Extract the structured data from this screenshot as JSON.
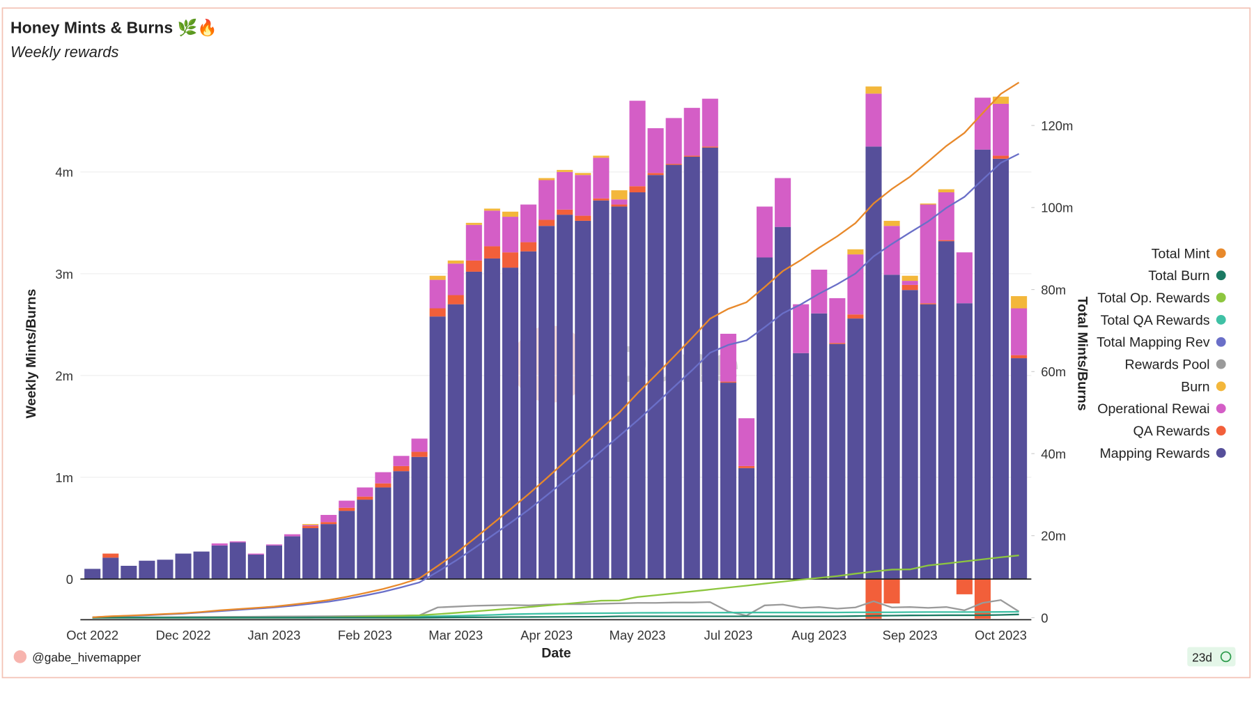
{
  "chart_data": {
    "type": "combo",
    "title": "Honey Mints & Burns 🌿🔥",
    "subtitle": "Weekly rewards",
    "x_label": "Date",
    "y_label": "Weekly Mints/Burns",
    "y2_label": "Total Mints/Burns",
    "watermark": "Dune",
    "author": "@gabe_hivemapper",
    "age": "23d",
    "categories": [
      "Oct 2022",
      null,
      null,
      null,
      null,
      "Dec 2022",
      null,
      null,
      null,
      null,
      "Jan 2023",
      null,
      null,
      null,
      null,
      "Feb 2023",
      null,
      null,
      null,
      null,
      "Mar 2023",
      null,
      null,
      null,
      null,
      "Apr 2023",
      null,
      null,
      null,
      null,
      "May 2023",
      null,
      null,
      null,
      null,
      "Jul 2023",
      null,
      null,
      null,
      null,
      "Aug 2023",
      null,
      null,
      null,
      null,
      "Sep 2023",
      null,
      null,
      null,
      null,
      "Oct 2023",
      null
    ],
    "ylim": [
      -0.4,
      4.9
    ],
    "yticks": [
      0,
      {
        "value": 1,
        "label": "1m"
      },
      {
        "value": 2,
        "label": "2m"
      },
      {
        "value": 3,
        "label": "3m"
      },
      {
        "value": 4,
        "label": "4m"
      }
    ],
    "y2lim": [
      -0.5,
      131
    ],
    "y2ticks": [
      0,
      {
        "value": 20,
        "label": "20m"
      },
      {
        "value": 40,
        "label": "40m"
      },
      {
        "value": 60,
        "label": "60m"
      },
      {
        "value": 80,
        "label": "80m"
      },
      {
        "value": 100,
        "label": "100m"
      },
      {
        "value": 120,
        "label": "120m"
      }
    ],
    "grid": true,
    "legend": "right",
    "series": [
      {
        "name": "Total Mint",
        "type": "line",
        "axis": "y2",
        "color": "#e8892b",
        "values": [
          0.1,
          0.35,
          0.5,
          0.7,
          0.9,
          1.1,
          1.4,
          1.8,
          2.1,
          2.4,
          2.7,
          3.2,
          3.7,
          4.3,
          5.1,
          6.0,
          7.0,
          8.2,
          9.6,
          12.6,
          15.7,
          19.2,
          22.8,
          26.4,
          30.1,
          34.0,
          38.0,
          42.0,
          46.1,
          50.0,
          54.7,
          59.1,
          63.6,
          68.2,
          72.9,
          75.3,
          76.9,
          80.6,
          84.5,
          87.2,
          90.2,
          93.0,
          96.2,
          101.0,
          104.5,
          107.5,
          111.2,
          115.0,
          118.2,
          123.0,
          127.7,
          130.5
        ]
      },
      {
        "name": "Total Burn",
        "type": "line",
        "axis": "y2",
        "color": "#1b7a63",
        "values": [
          0,
          0,
          0,
          0,
          0,
          0,
          0,
          0,
          0,
          0,
          0,
          0,
          0.01,
          0.01,
          0.01,
          0.01,
          0.01,
          0.01,
          0.01,
          0.05,
          0.08,
          0.1,
          0.12,
          0.17,
          0.17,
          0.19,
          0.21,
          0.23,
          0.25,
          0.34,
          0.34,
          0.34,
          0.34,
          0.34,
          0.34,
          0.34,
          0.34,
          0.34,
          0.34,
          0.34,
          0.34,
          0.34,
          0.39,
          0.46,
          0.51,
          0.56,
          0.57,
          0.6,
          0.6,
          0.6,
          0.67,
          0.79
        ]
      },
      {
        "name": "Total Op. Rewards",
        "type": "line",
        "axis": "y2",
        "color": "#8dc63f",
        "values": [
          0,
          0,
          0,
          0,
          0,
          0,
          0,
          0,
          0,
          0,
          0,
          0,
          0.01,
          0.08,
          0.15,
          0.24,
          0.35,
          0.45,
          0.58,
          0.86,
          1.17,
          1.52,
          1.87,
          2.22,
          2.59,
          2.98,
          3.35,
          3.75,
          4.15,
          4.2,
          5.04,
          5.48,
          5.93,
          6.4,
          6.87,
          7.34,
          7.81,
          8.31,
          8.79,
          9.27,
          9.7,
          10.14,
          10.73,
          11.25,
          11.73,
          11.77,
          12.74,
          13.21,
          13.71,
          14.22,
          14.73,
          15.19
        ]
      },
      {
        "name": "Total QA Rewards",
        "type": "line",
        "axis": "y2",
        "color": "#3fc1a5",
        "values": [
          0,
          0.04,
          0.04,
          0.04,
          0.04,
          0.04,
          0.04,
          0.04,
          0.04,
          0.04,
          0.04,
          0.04,
          0.06,
          0.08,
          0.11,
          0.14,
          0.18,
          0.23,
          0.28,
          0.36,
          0.45,
          0.56,
          0.68,
          0.83,
          0.92,
          0.98,
          1.03,
          1.08,
          1.1,
          1.12,
          1.18,
          1.2,
          1.21,
          1.22,
          1.23,
          1.24,
          1.26,
          1.26,
          1.26,
          1.26,
          1.26,
          1.27,
          1.31,
          1.31,
          1.31,
          1.36,
          1.37,
          1.38,
          1.38,
          1.38,
          1.41,
          1.44
        ]
      },
      {
        "name": "Total Mapping Rev",
        "type": "line",
        "axis": "y2",
        "color": "#6a6fc8",
        "values": [
          0.1,
          0.3,
          0.45,
          0.6,
          0.8,
          1,
          1.3,
          1.6,
          1.9,
          2.2,
          2.5,
          2.9,
          3.4,
          3.9,
          4.6,
          5.4,
          6.3,
          7.4,
          8.6,
          11.2,
          13.9,
          16.9,
          20.0,
          23.1,
          26.3,
          29.8,
          33.4,
          36.9,
          40.6,
          44.3,
          48.1,
          52.1,
          56.2,
          60.3,
          64.6,
          66.5,
          67.6,
          70.8,
          74.2,
          76.4,
          79.0,
          81.3,
          83.9,
          88.1,
          91.1,
          93.9,
          96.6,
          99.9,
          102.6,
          106.8,
          110.9,
          113.1
        ]
      },
      {
        "name": "Rewards Pool",
        "type": "line",
        "axis": "y2",
        "color": "#9a9a9a",
        "values": [
          0,
          0.05,
          0.08,
          0.1,
          0.12,
          0.15,
          0.18,
          0.2,
          0.22,
          0.25,
          0.28,
          0.3,
          0.33,
          0.36,
          0.4,
          0.44,
          0.48,
          0.52,
          0.58,
          2.5,
          2.7,
          2.9,
          3.0,
          3.1,
          3.0,
          3.2,
          3.3,
          3.3,
          3.4,
          3.5,
          3.6,
          3.6,
          3.7,
          3.7,
          3.8,
          1.5,
          0.5,
          3.0,
          3.2,
          2.4,
          2.6,
          2.2,
          2.5,
          4.0,
          2.5,
          2.6,
          2.4,
          2.6,
          1.8,
          3.6,
          4.3,
          1.5
        ]
      },
      {
        "name": "Burn",
        "type": "bar",
        "color": "#f3b73b",
        "values": [
          0,
          0,
          0,
          0,
          0,
          0,
          0,
          0,
          0,
          0,
          0,
          0,
          0.01,
          0,
          0,
          0,
          0,
          0,
          0,
          0.04,
          0.03,
          0.02,
          0.02,
          0.05,
          0,
          0.02,
          0.02,
          0.02,
          0.02,
          0.09,
          0,
          0,
          0,
          0,
          0,
          0,
          0,
          0,
          0,
          0,
          0,
          0,
          0.05,
          0.07,
          0.05,
          0.05,
          0.01,
          0.03,
          0,
          0,
          0.07,
          0.12
        ]
      },
      {
        "name": "Operational Rewai",
        "type": "bar",
        "color": "#d45ec6",
        "values": [
          0,
          0,
          0,
          0,
          0,
          0,
          0,
          0.02,
          0.01,
          0.01,
          0.01,
          0.02,
          0.01,
          0.07,
          0.07,
          0.09,
          0.11,
          0.1,
          0.13,
          0.28,
          0.31,
          0.35,
          0.35,
          0.35,
          0.37,
          0.39,
          0.37,
          0.4,
          0.4,
          0.05,
          0.84,
          0.44,
          0.45,
          0.47,
          0.47,
          0.47,
          0.47,
          0.5,
          0.48,
          0.48,
          0.43,
          0.44,
          0.59,
          0.52,
          0.48,
          0.04,
          0.97,
          0.47,
          0.5,
          0.51,
          0.51,
          0.46
        ]
      },
      {
        "name": "QA Rewards",
        "type": "bar",
        "color": "#f25f3a",
        "values": [
          0,
          0.04,
          0,
          0,
          0,
          0,
          0,
          0,
          0,
          0,
          0,
          0,
          0.02,
          0.02,
          0.03,
          0.03,
          0.04,
          0.05,
          0.05,
          0.08,
          0.09,
          0.11,
          0.12,
          0.15,
          0.09,
          0.06,
          0.05,
          0.05,
          0.02,
          0.02,
          0.06,
          0.02,
          0.01,
          0.01,
          0.01,
          0.01,
          0.02,
          0,
          0,
          0,
          0,
          0.01,
          0.04,
          -0.39,
          -0.24,
          0.05,
          0.01,
          0.01,
          -0.15,
          -0.39,
          0.03,
          0.03
        ]
      },
      {
        "name": "Mapping Rewards",
        "type": "bar",
        "color": "#564f9a",
        "values": [
          0.1,
          0.21,
          0.13,
          0.18,
          0.19,
          0.25,
          0.27,
          0.33,
          0.36,
          0.24,
          0.33,
          0.42,
          0.5,
          0.54,
          0.67,
          0.78,
          0.9,
          1.06,
          1.2,
          2.58,
          2.7,
          3.02,
          3.15,
          3.06,
          3.22,
          3.47,
          3.58,
          3.52,
          3.72,
          3.66,
          3.8,
          3.97,
          4.07,
          4.15,
          4.24,
          1.93,
          1.09,
          3.16,
          3.46,
          2.22,
          2.61,
          2.31,
          2.56,
          4.25,
          2.99,
          2.84,
          2.7,
          3.32,
          2.71,
          4.22,
          4.13,
          2.17
        ]
      }
    ]
  }
}
